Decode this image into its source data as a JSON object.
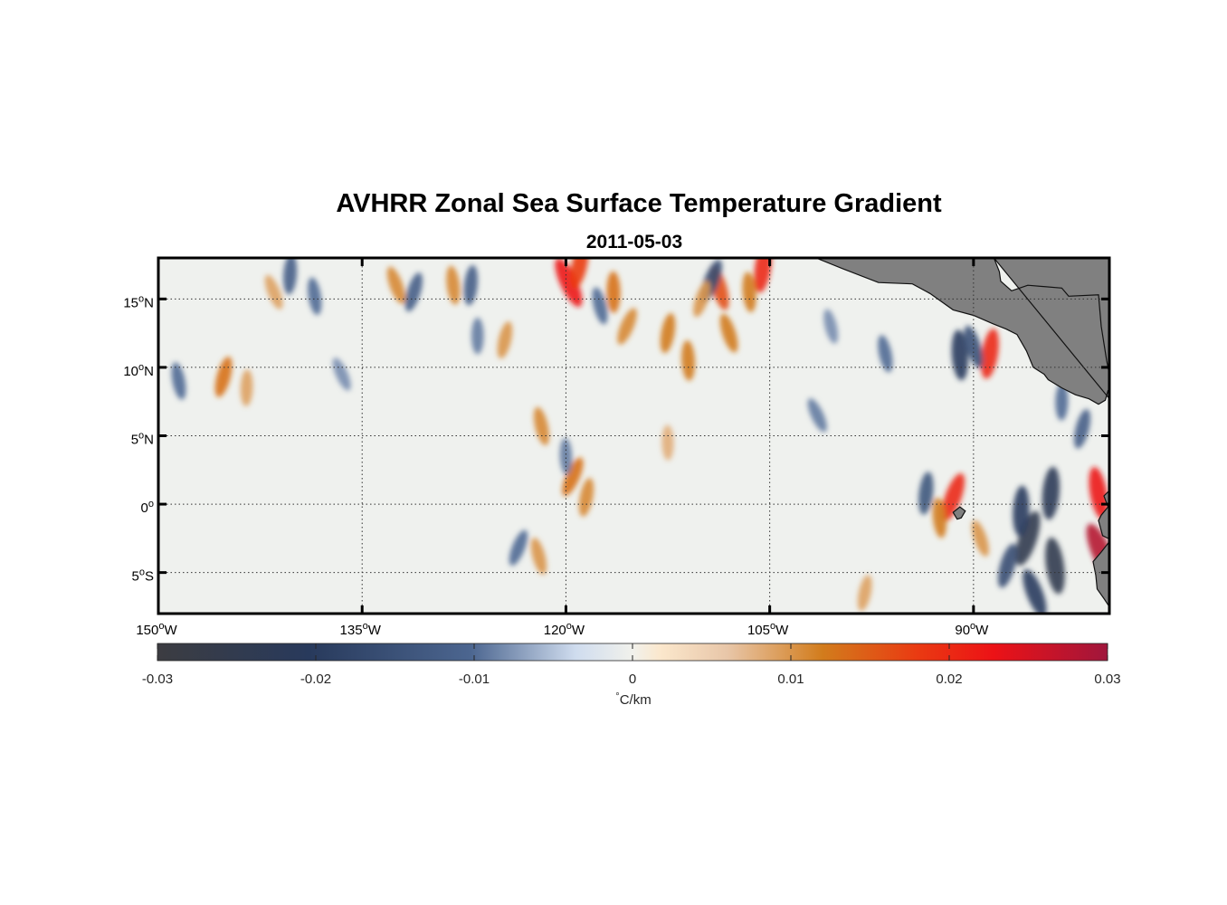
{
  "chart_data": {
    "type": "heatmap",
    "title": "AVHRR Zonal Sea Surface Temperature Gradient",
    "subtitle": "2011-05-03",
    "xlim": [
      -150,
      -80
    ],
    "ylim": [
      -8,
      18
    ],
    "lon_ticks": [
      {
        "value": -150,
        "deg": "150",
        "hemi": "W"
      },
      {
        "value": -135,
        "deg": "135",
        "hemi": "W"
      },
      {
        "value": -120,
        "deg": "120",
        "hemi": "W"
      },
      {
        "value": -105,
        "deg": "105",
        "hemi": "W"
      },
      {
        "value": -90,
        "deg": "90",
        "hemi": "W"
      }
    ],
    "lat_ticks": [
      {
        "value": 15,
        "deg": "15",
        "hemi": "N"
      },
      {
        "value": 10,
        "deg": "10",
        "hemi": "N"
      },
      {
        "value": 5,
        "deg": "5",
        "hemi": "N"
      },
      {
        "value": 0,
        "deg": "0",
        "hemi": ""
      },
      {
        "value": -5,
        "deg": "5",
        "hemi": "S"
      }
    ],
    "grid": true,
    "colorbar": {
      "min": -0.03,
      "max": 0.03,
      "ticks": [
        -0.03,
        -0.02,
        -0.01,
        0,
        0.01,
        0.02,
        0.03
      ],
      "tick_labels": [
        "-0.03",
        "-0.02",
        "-0.01",
        "0",
        "0.01",
        "0.02",
        "0.03"
      ],
      "label_symbol": "°",
      "label": "C/km",
      "colormap": [
        [
          0.0,
          "#3c3c41"
        ],
        [
          0.16,
          "#283a5c"
        ],
        [
          0.33,
          "#4c6690"
        ],
        [
          0.44,
          "#cfdcee"
        ],
        [
          0.5,
          "#f1f1ec"
        ],
        [
          0.53,
          "#fbe7cc"
        ],
        [
          0.6,
          "#e8c6a8"
        ],
        [
          0.7,
          "#d27c1c"
        ],
        [
          0.8,
          "#ea3a12"
        ],
        [
          0.88,
          "#ec1216"
        ],
        [
          1.0,
          "#a0163c"
        ]
      ]
    },
    "features": [
      {
        "lon": -119.8,
        "lat": 16.2,
        "value": 0.022
      },
      {
        "lon": -119.0,
        "lat": 17.5,
        "value": 0.018
      },
      {
        "lon": -116.5,
        "lat": 15.5,
        "value": 0.013
      },
      {
        "lon": -117.5,
        "lat": 14.5,
        "value": -0.01
      },
      {
        "lon": -115.5,
        "lat": 13.0,
        "value": 0.011
      },
      {
        "lon": -112.5,
        "lat": 12.5,
        "value": 0.012
      },
      {
        "lon": -111.0,
        "lat": 10.5,
        "value": 0.012
      },
      {
        "lon": -108.7,
        "lat": 15.8,
        "value": 0.016
      },
      {
        "lon": -109.3,
        "lat": 16.3,
        "value": -0.016
      },
      {
        "lon": -105.5,
        "lat": 17.3,
        "value": 0.02
      },
      {
        "lon": -106.5,
        "lat": 15.5,
        "value": 0.012
      },
      {
        "lon": -108.0,
        "lat": 12.5,
        "value": 0.012
      },
      {
        "lon": -110.0,
        "lat": 15.0,
        "value": 0.01
      },
      {
        "lon": -127.0,
        "lat": 16.0,
        "value": -0.012
      },
      {
        "lon": -128.3,
        "lat": 16.0,
        "value": 0.011
      },
      {
        "lon": -132.5,
        "lat": 16.0,
        "value": 0.011
      },
      {
        "lon": -131.2,
        "lat": 15.5,
        "value": -0.012
      },
      {
        "lon": -140.3,
        "lat": 16.8,
        "value": -0.012
      },
      {
        "lon": -138.5,
        "lat": 15.2,
        "value": -0.01
      },
      {
        "lon": -141.5,
        "lat": 15.5,
        "value": 0.009
      },
      {
        "lon": -145.2,
        "lat": 9.3,
        "value": 0.013
      },
      {
        "lon": -143.5,
        "lat": 8.5,
        "value": 0.009
      },
      {
        "lon": -148.5,
        "lat": 9.0,
        "value": -0.01
      },
      {
        "lon": -136.5,
        "lat": 9.5,
        "value": -0.008
      },
      {
        "lon": -124.5,
        "lat": 12.0,
        "value": 0.01
      },
      {
        "lon": -126.5,
        "lat": 12.3,
        "value": -0.009
      },
      {
        "lon": -121.8,
        "lat": 5.7,
        "value": 0.011
      },
      {
        "lon": -119.5,
        "lat": 2.0,
        "value": 0.013
      },
      {
        "lon": -118.5,
        "lat": 0.5,
        "value": 0.011
      },
      {
        "lon": -120.0,
        "lat": 3.5,
        "value": -0.009
      },
      {
        "lon": -122.0,
        "lat": -3.8,
        "value": 0.01
      },
      {
        "lon": -123.5,
        "lat": -3.2,
        "value": -0.01
      },
      {
        "lon": -88.8,
        "lat": 11.0,
        "value": 0.02
      },
      {
        "lon": -91.0,
        "lat": 10.9,
        "value": -0.02
      },
      {
        "lon": -90.0,
        "lat": 11.5,
        "value": -0.015
      },
      {
        "lon": -91.5,
        "lat": 0.5,
        "value": 0.02
      },
      {
        "lon": -93.5,
        "lat": 0.8,
        "value": -0.014
      },
      {
        "lon": -92.5,
        "lat": -1.0,
        "value": 0.012
      },
      {
        "lon": -89.5,
        "lat": -2.5,
        "value": 0.01
      },
      {
        "lon": -86.0,
        "lat": -2.5,
        "value": -0.025
      },
      {
        "lon": -84.3,
        "lat": 0.8,
        "value": -0.022
      },
      {
        "lon": -84.0,
        "lat": -4.5,
        "value": -0.025
      },
      {
        "lon": -85.5,
        "lat": -6.5,
        "value": -0.02
      },
      {
        "lon": -87.5,
        "lat": -4.5,
        "value": -0.016
      },
      {
        "lon": -86.5,
        "lat": -0.5,
        "value": -0.02
      },
      {
        "lon": -80.8,
        "lat": 0.8,
        "value": 0.022
      },
      {
        "lon": -80.6,
        "lat": -3.5,
        "value": 0.028
      },
      {
        "lon": -82.0,
        "lat": 5.5,
        "value": -0.012
      },
      {
        "lon": -83.5,
        "lat": 7.5,
        "value": -0.01
      },
      {
        "lon": -96.5,
        "lat": 11.0,
        "value": -0.01
      },
      {
        "lon": -101.5,
        "lat": 6.5,
        "value": -0.009
      },
      {
        "lon": -98.0,
        "lat": -6.5,
        "value": 0.009
      },
      {
        "lon": -112.5,
        "lat": 4.5,
        "value": 0.008
      },
      {
        "lon": -100.5,
        "lat": 13.0,
        "value": -0.008
      }
    ],
    "land": [
      {
        "name": "central-america",
        "points": [
          [
            -101.6,
            18
          ],
          [
            -99.6,
            17.2
          ],
          [
            -97,
            16.2
          ],
          [
            -94.5,
            16.1
          ],
          [
            -93.2,
            15.4
          ],
          [
            -91.5,
            14.2
          ],
          [
            -90,
            13.8
          ],
          [
            -88.6,
            13.2
          ],
          [
            -87.6,
            12.8
          ],
          [
            -86.8,
            12.4
          ],
          [
            -86.1,
            11.2
          ],
          [
            -85.6,
            10.0
          ],
          [
            -84.8,
            9.5
          ],
          [
            -84.5,
            9.1
          ],
          [
            -83.5,
            8.5
          ],
          [
            -82.5,
            8.0
          ],
          [
            -81.5,
            7.7
          ],
          [
            -80.8,
            7.3
          ],
          [
            -80.3,
            7.6
          ],
          [
            -80.1,
            8.3
          ],
          [
            -79.5,
            8.9
          ],
          [
            -79.5,
            8.6
          ],
          [
            -79.7,
            9.2
          ],
          [
            -80.0,
            9.5
          ],
          [
            -80.2,
            10.5
          ],
          [
            -80.6,
            13.0
          ],
          [
            -80.8,
            15.3
          ],
          [
            -83.0,
            15.2
          ],
          [
            -83.5,
            15.8
          ],
          [
            -86.0,
            16.0
          ],
          [
            -87.2,
            15.6
          ],
          [
            -88.0,
            16.3
          ],
          [
            -88.1,
            17.0
          ],
          [
            -88.5,
            18.0
          ]
        ]
      },
      {
        "name": "south-america",
        "points": [
          [
            -80.0,
            1.0
          ],
          [
            -80.4,
            0.6
          ],
          [
            -80.1,
            -0.2
          ],
          [
            -80.6,
            -0.8
          ],
          [
            -80.8,
            -1.2
          ],
          [
            -80.5,
            -2.3
          ],
          [
            -79.9,
            -2.6
          ],
          [
            -80.2,
            -3.0
          ],
          [
            -80.6,
            -3.5
          ],
          [
            -81.2,
            -4.2
          ],
          [
            -81.0,
            -5.2
          ],
          [
            -80.9,
            -6.2
          ],
          [
            -80.4,
            -6.9
          ],
          [
            -80.0,
            -7.5
          ],
          [
            -80,
            -8
          ]
        ]
      },
      {
        "name": "galapagos",
        "points": [
          [
            -91.5,
            -0.6
          ],
          [
            -91.0,
            -0.2
          ],
          [
            -90.6,
            -0.5
          ],
          [
            -90.9,
            -1.0
          ],
          [
            -91.2,
            -1.1
          ]
        ]
      }
    ]
  }
}
